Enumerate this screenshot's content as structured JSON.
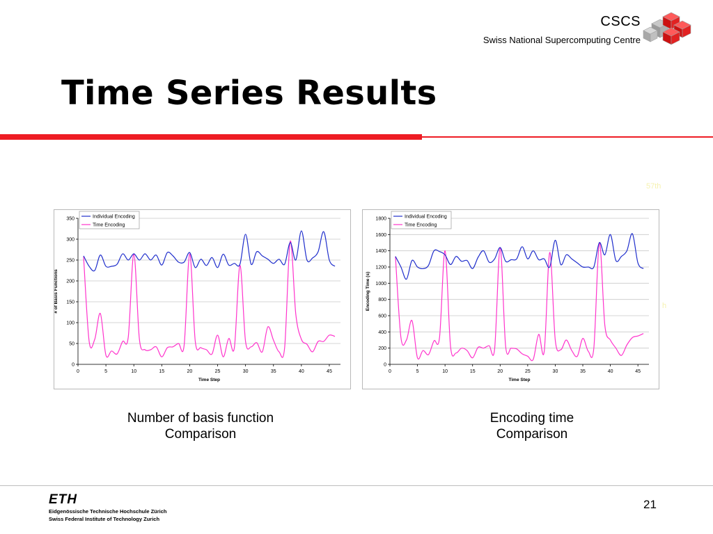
{
  "header": {
    "org_name": "CSCS",
    "org_full_name": "Swiss National Supercomputing Centre",
    "logo_icon": "cscs-cubes-logo"
  },
  "slide": {
    "title": "Time Series Results",
    "ghost_text_1": "57th",
    "ghost_text_2": "h",
    "accent_color": "#ee1c24"
  },
  "captions": {
    "left": [
      "Number of basis function",
      "Comparison"
    ],
    "right": [
      "Encoding time",
      "Comparison"
    ]
  },
  "footer": {
    "eth_logo": "ETH",
    "eth_line1": "Eidgenössische Technische Hochschule Zürich",
    "eth_line2": "Swiss Federal Institute of Technology Zurich",
    "page_number": "21"
  },
  "chart_data": [
    {
      "type": "line",
      "title": "",
      "xlabel": "Time Step",
      "ylabel": "# of Basis Functions",
      "xlim": [
        0,
        47
      ],
      "ylim": [
        0,
        350
      ],
      "xticks": [
        0,
        5,
        10,
        15,
        20,
        25,
        30,
        35,
        40,
        45
      ],
      "yticks": [
        0,
        50,
        100,
        150,
        200,
        250,
        300,
        350
      ],
      "grid": true,
      "legend": "top-left",
      "x": [
        1,
        2,
        3,
        4,
        5,
        6,
        7,
        8,
        9,
        10,
        11,
        12,
        13,
        14,
        15,
        16,
        17,
        18,
        19,
        20,
        21,
        22,
        23,
        24,
        25,
        26,
        27,
        28,
        29,
        30,
        31,
        32,
        33,
        34,
        35,
        36,
        37,
        38,
        39,
        40,
        41,
        42,
        43,
        44,
        45,
        46
      ],
      "series": [
        {
          "name": "Individual Encoding",
          "color": "#1f2ecc",
          "values": [
            260,
            235,
            225,
            262,
            235,
            235,
            240,
            265,
            250,
            265,
            250,
            265,
            250,
            262,
            238,
            268,
            260,
            245,
            245,
            268,
            232,
            252,
            237,
            256,
            232,
            264,
            238,
            242,
            240,
            312,
            240,
            270,
            260,
            252,
            242,
            252,
            240,
            292,
            250,
            320,
            250,
            255,
            270,
            318,
            250,
            235
          ]
        },
        {
          "name": "Time Encoding",
          "color": "#ff33cc",
          "values": [
            258,
            55,
            60,
            122,
            22,
            32,
            25,
            55,
            65,
            265,
            60,
            35,
            35,
            42,
            18,
            40,
            42,
            50,
            45,
            265,
            55,
            40,
            35,
            25,
            70,
            18,
            62,
            40,
            237,
            55,
            42,
            52,
            30,
            90,
            58,
            30,
            40,
            295,
            120,
            60,
            48,
            30,
            55,
            55,
            70,
            67
          ]
        }
      ]
    },
    {
      "type": "line",
      "title": "",
      "xlabel": "Time Step",
      "ylabel": "Encoding Time (s)",
      "xlim": [
        0,
        47
      ],
      "ylim": [
        0,
        1800
      ],
      "xticks": [
        0,
        5,
        10,
        15,
        20,
        25,
        30,
        35,
        40,
        45
      ],
      "yticks": [
        0,
        200,
        400,
        600,
        800,
        1000,
        1200,
        1400,
        1600,
        1800
      ],
      "grid": true,
      "legend": "top-left",
      "x": [
        1,
        2,
        3,
        4,
        5,
        6,
        7,
        8,
        9,
        10,
        11,
        12,
        13,
        14,
        15,
        16,
        17,
        18,
        19,
        20,
        21,
        22,
        23,
        24,
        25,
        26,
        27,
        28,
        29,
        30,
        31,
        32,
        33,
        34,
        35,
        36,
        37,
        38,
        39,
        40,
        41,
        42,
        43,
        44,
        45,
        46
      ],
      "series": [
        {
          "name": "Individual Encoding",
          "color": "#1f2ecc",
          "values": [
            1330,
            1200,
            1050,
            1280,
            1200,
            1180,
            1220,
            1400,
            1390,
            1350,
            1230,
            1330,
            1270,
            1280,
            1180,
            1320,
            1400,
            1260,
            1300,
            1440,
            1270,
            1290,
            1300,
            1450,
            1300,
            1400,
            1290,
            1300,
            1200,
            1530,
            1230,
            1350,
            1300,
            1250,
            1200,
            1200,
            1200,
            1500,
            1350,
            1600,
            1280,
            1330,
            1400,
            1610,
            1250,
            1180
          ]
        },
        {
          "name": "Time Encoding",
          "color": "#ff33cc",
          "values": [
            1330,
            330,
            300,
            540,
            80,
            170,
            120,
            290,
            330,
            1400,
            220,
            140,
            200,
            170,
            80,
            210,
            200,
            230,
            190,
            1440,
            220,
            200,
            190,
            130,
            100,
            60,
            370,
            160,
            1380,
            300,
            180,
            300,
            170,
            100,
            320,
            160,
            200,
            1500,
            480,
            300,
            200,
            110,
            240,
            330,
            350,
            380
          ]
        }
      ]
    }
  ]
}
